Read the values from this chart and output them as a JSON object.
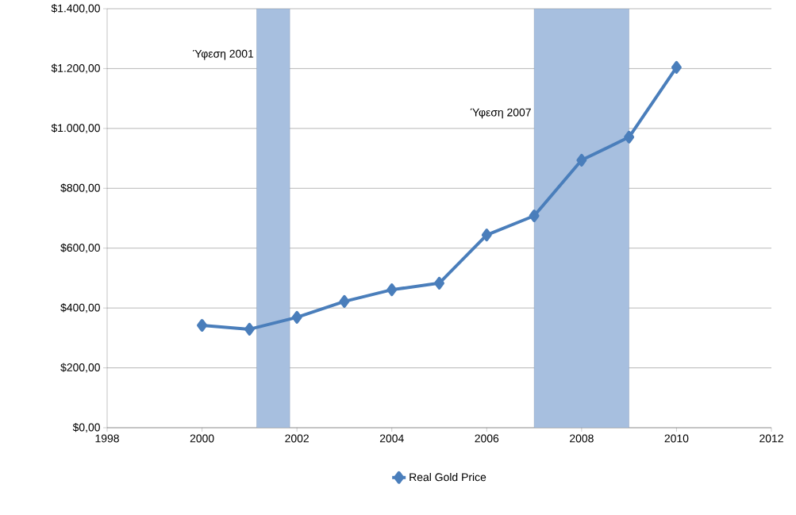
{
  "chart_data": {
    "type": "line",
    "x": [
      2000,
      2001,
      2002,
      2003,
      2004,
      2005,
      2006,
      2007,
      2008,
      2009,
      2010
    ],
    "series": [
      {
        "name": "Real Gold Price",
        "color": "#4a7ebb",
        "values": [
          342,
          329,
          369,
          422,
          461,
          483,
          644,
          708,
          894,
          971,
          1204
        ]
      }
    ],
    "xlim": [
      1998,
      2012
    ],
    "xticks": [
      1998,
      2000,
      2002,
      2004,
      2006,
      2008,
      2010,
      2012
    ],
    "ylim": [
      0,
      1400
    ],
    "yticks": [
      {
        "value": 0,
        "label": "$0,00"
      },
      {
        "value": 200,
        "label": "$200,00"
      },
      {
        "value": 400,
        "label": "$400,00"
      },
      {
        "value": 600,
        "label": "$600,00"
      },
      {
        "value": 800,
        "label": "$800,00"
      },
      {
        "value": 1000,
        "label": "$1.000,00"
      },
      {
        "value": 1200,
        "label": "$1.200,00"
      },
      {
        "value": 1400,
        "label": "$1.400,00"
      }
    ],
    "bands": [
      {
        "axis": "x",
        "from": 2001.15,
        "to": 2001.85,
        "label": "Ύφεση 2001",
        "color": "#a7bfdf"
      },
      {
        "axis": "x",
        "from": 2007,
        "to": 2009,
        "label": "Ύφεση 2007",
        "color": "#a7bfdf"
      }
    ],
    "grid": "y",
    "legend": "bottom",
    "marker": "diamond",
    "line_style": "solid"
  }
}
